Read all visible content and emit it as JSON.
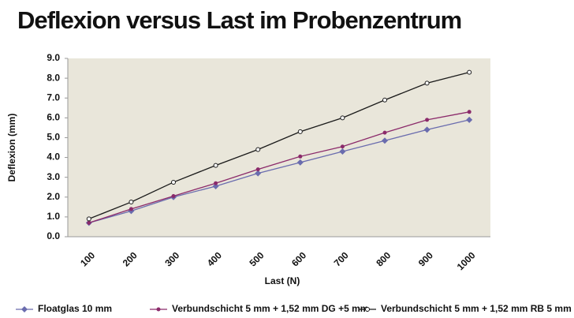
{
  "chart_data": {
    "type": "line",
    "title": "Deflexion versus Last im Probenzentrum",
    "x_label": "Last (N)",
    "y_label": "Deflexion (mm)",
    "categories": [
      "100",
      "200",
      "300",
      "400",
      "500",
      "600",
      "700",
      "800",
      "900",
      "1000"
    ],
    "series": [
      {
        "name": "Floatglas 10 mm",
        "color": "#6a6cae",
        "marker": "diamond",
        "values": [
          0.7,
          1.3,
          2.0,
          2.55,
          3.2,
          3.75,
          4.3,
          4.85,
          5.4,
          5.9
        ]
      },
      {
        "name": "Verbundschicht 5 mm + 1,52 mm DG +5 mm",
        "color": "#8b2a6a",
        "marker": "dot",
        "values": [
          0.7,
          1.4,
          2.05,
          2.7,
          3.4,
          4.05,
          4.55,
          5.25,
          5.9,
          6.3
        ]
      },
      {
        "name": "Verbundschicht 5 mm + 1,52 mm RB 5 mm",
        "color": "#1a1a1a",
        "marker": "ring",
        "values": [
          0.9,
          1.75,
          2.75,
          3.6,
          4.4,
          5.3,
          6.0,
          6.9,
          7.75,
          8.3
        ]
      }
    ],
    "ylim": [
      0,
      9
    ],
    "yticks": [
      {
        "value": 0,
        "label": "0.0"
      },
      {
        "value": 1,
        "label": "1.0"
      },
      {
        "value": 2,
        "label": "2.0"
      },
      {
        "value": 3,
        "label": "3.0"
      },
      {
        "value": 4,
        "label": "4.0"
      },
      {
        "value": 5,
        "label": "5.0"
      },
      {
        "value": 6,
        "label": "6.0"
      },
      {
        "value": 7,
        "label": "7.0"
      },
      {
        "value": 8,
        "label": "8.0"
      },
      {
        "value": 9,
        "label": "9.0"
      }
    ],
    "grid": false,
    "legend": "bottom",
    "plot_background": "#e9e6da"
  }
}
